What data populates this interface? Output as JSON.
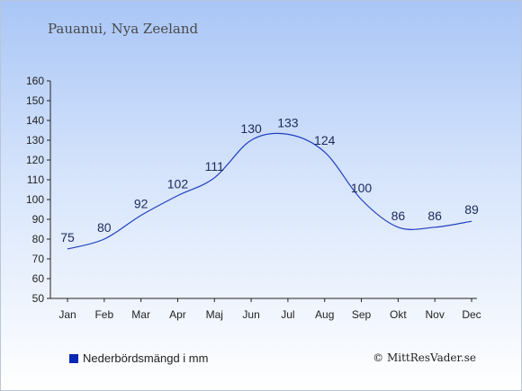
{
  "header": {
    "location": "Pauanui, Nya Zeeland"
  },
  "legend": {
    "label": "Nederbördsmängd i mm",
    "color": "#0a28b4"
  },
  "footer": {
    "copyright": "© MittResVader.se"
  },
  "chart_data": {
    "type": "line",
    "title": "",
    "xlabel": "",
    "ylabel": "",
    "categories": [
      "Jan",
      "Feb",
      "Mar",
      "Apr",
      "Maj",
      "Jun",
      "Jul",
      "Aug",
      "Sep",
      "Okt",
      "Nov",
      "Dec"
    ],
    "series": [
      {
        "name": "Nederbördsmängd i mm",
        "values": [
          75,
          80,
          92,
          102,
          111,
          130,
          133,
          124,
          100,
          86,
          86,
          89
        ],
        "color": "#1f3fbf"
      }
    ],
    "ylim": [
      50,
      160
    ],
    "yticks": [
      50,
      60,
      70,
      80,
      90,
      100,
      110,
      120,
      130,
      140,
      150,
      160
    ],
    "grid": false,
    "legend_position": "bottom-left"
  }
}
